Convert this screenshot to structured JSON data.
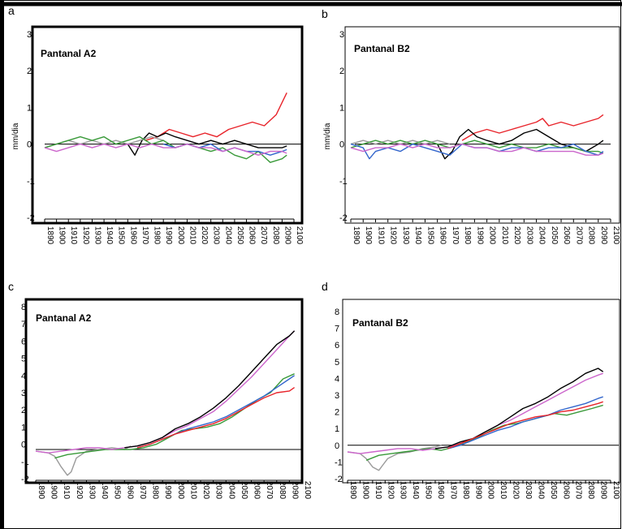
{
  "chart_data": [
    {
      "panel": "a",
      "title": "Pantanal A2",
      "type": "line",
      "ylabel": "mm/dia",
      "ylim": [
        -2,
        3
      ],
      "xlim": [
        1890,
        2100
      ],
      "yticks": [
        "3",
        "2",
        "1",
        "0",
        "-1",
        "-2"
      ],
      "xticks": [
        "1890",
        "1900",
        "1910",
        "1920",
        "1930",
        "1940",
        "1950",
        "1960",
        "1970",
        "1980",
        "1990",
        "2000",
        "2010",
        "2020",
        "2030",
        "2040",
        "2050",
        "2060",
        "2070",
        "2080",
        "2090",
        "2100"
      ],
      "reference_line": 0,
      "series": [
        {
          "color": "#e8232a",
          "x": [
            1975,
            1985,
            1995,
            2005,
            2015,
            2025,
            2035,
            2045,
            2055,
            2065,
            2075,
            2085,
            2094
          ],
          "y": [
            0.1,
            0.2,
            0.4,
            0.3,
            0.2,
            0.3,
            0.2,
            0.4,
            0.5,
            0.6,
            0.5,
            0.8,
            1.4
          ]
        },
        {
          "color": "#000000",
          "x": [
            1960,
            1966,
            1972,
            1978,
            1985,
            1992,
            2000,
            2010,
            2020,
            2030,
            2040,
            2050,
            2060,
            2070,
            2080,
            2090,
            2094
          ],
          "y": [
            0.0,
            -0.3,
            0.1,
            0.3,
            0.2,
            0.3,
            0.2,
            0.1,
            0.0,
            0.1,
            0.0,
            0.1,
            0.0,
            -0.1,
            -0.1,
            -0.1,
            -0.05
          ]
        },
        {
          "color": "#9a9a9a",
          "x": [
            1890,
            1900,
            1910,
            1920,
            1930,
            1940,
            1950,
            1960,
            1970,
            1980,
            1990
          ],
          "y": [
            -0.1,
            0.0,
            0.1,
            0.0,
            0.1,
            0.0,
            0.1,
            0.0,
            0.1,
            0.2,
            0.1
          ]
        },
        {
          "color": "#3a9a3a",
          "x": [
            1890,
            1900,
            1910,
            1920,
            1930,
            1940,
            1950,
            1960,
            1970,
            1980,
            1990,
            2000,
            2010,
            2020,
            2030,
            2040,
            2050,
            2060,
            2070,
            2080,
            2090,
            2094
          ],
          "y": [
            -0.1,
            0.0,
            0.1,
            0.2,
            0.1,
            0.2,
            0.0,
            0.1,
            0.2,
            0.0,
            0.1,
            -0.1,
            0.0,
            -0.1,
            -0.2,
            -0.1,
            -0.3,
            -0.4,
            -0.2,
            -0.5,
            -0.4,
            -0.3
          ]
        },
        {
          "color": "#3366cc",
          "x": [
            1990,
            2000,
            2010,
            2020,
            2030,
            2040,
            2050,
            2060,
            2070,
            2080,
            2090,
            2094
          ],
          "y": [
            0.0,
            -0.1,
            0.0,
            -0.1,
            0.0,
            -0.2,
            -0.1,
            -0.2,
            -0.2,
            -0.3,
            -0.2,
            -0.15
          ]
        },
        {
          "color": "#cc66cc",
          "x": [
            1890,
            1900,
            1910,
            1920,
            1930,
            1940,
            1950,
            1960,
            1970,
            1980,
            1990,
            2000,
            2010,
            2020,
            2030,
            2040,
            2050,
            2060,
            2070,
            2080,
            2090,
            2094
          ],
          "y": [
            -0.1,
            -0.2,
            -0.1,
            0.0,
            -0.1,
            0.0,
            -0.1,
            0.0,
            -0.1,
            0.0,
            -0.1,
            -0.1,
            0.0,
            -0.1,
            -0.1,
            -0.2,
            -0.1,
            -0.2,
            -0.3,
            -0.2,
            -0.2,
            -0.25
          ]
        }
      ]
    },
    {
      "panel": "b",
      "title": "Pantanal B2",
      "type": "line",
      "ylabel": "mm/dia",
      "ylim": [
        -2,
        3
      ],
      "xlim": [
        1890,
        2100
      ],
      "yticks": [
        "3",
        "2",
        "1",
        "0",
        "-1",
        "-2"
      ],
      "xticks": [
        "1890",
        "1900",
        "1910",
        "1920",
        "1930",
        "1940",
        "1950",
        "1960",
        "1970",
        "1980",
        "1990",
        "2000",
        "2010",
        "2020",
        "2030",
        "2040",
        "2050",
        "2060",
        "2070",
        "2080",
        "2090",
        "2100"
      ],
      "reference_line": 0,
      "series": [
        {
          "color": "#e8232a",
          "x": [
            1980,
            1990,
            2000,
            2010,
            2020,
            2030,
            2040,
            2045,
            2050,
            2060,
            2070,
            2080,
            2090,
            2094
          ],
          "y": [
            0.1,
            0.3,
            0.4,
            0.3,
            0.4,
            0.5,
            0.6,
            0.7,
            0.5,
            0.6,
            0.5,
            0.6,
            0.7,
            0.8
          ]
        },
        {
          "color": "#000000",
          "x": [
            1960,
            1966,
            1972,
            1978,
            1985,
            1992,
            2000,
            2010,
            2020,
            2030,
            2040,
            2050,
            2060,
            2070,
            2080,
            2090,
            2094
          ],
          "y": [
            0.0,
            -0.4,
            -0.2,
            0.2,
            0.4,
            0.2,
            0.1,
            0.0,
            0.1,
            0.3,
            0.4,
            0.2,
            0.0,
            -0.1,
            -0.2,
            0.0,
            0.1
          ]
        },
        {
          "color": "#9a9a9a",
          "x": [
            1890,
            1900,
            1910,
            1920,
            1930,
            1940,
            1950,
            1960,
            1970
          ],
          "y": [
            0.0,
            0.1,
            0.0,
            0.1,
            0.0,
            0.1,
            0.0,
            0.1,
            0.0
          ]
        },
        {
          "color": "#3a9a3a",
          "x": [
            1890,
            1900,
            1910,
            1920,
            1930,
            1940,
            1950,
            1960,
            1970,
            1980,
            1990,
            2000,
            2010,
            2020,
            2030,
            2040,
            2050,
            2060,
            2070,
            2080,
            2090,
            2094
          ],
          "y": [
            -0.1,
            0.0,
            0.1,
            0.0,
            0.1,
            0.0,
            0.1,
            0.0,
            -0.1,
            0.0,
            0.1,
            0.0,
            -0.1,
            0.0,
            -0.1,
            -0.1,
            0.0,
            -0.1,
            -0.1,
            -0.2,
            -0.2,
            -0.25
          ]
        },
        {
          "color": "#3366cc",
          "x": [
            1890,
            1900,
            1905,
            1910,
            1920,
            1930,
            1940,
            1950,
            1960,
            1970,
            1980,
            1990,
            2000,
            2010,
            2020,
            2030,
            2040,
            2050,
            2060,
            2070,
            2080,
            2090,
            2094
          ],
          "y": [
            0.0,
            -0.1,
            -0.4,
            -0.2,
            -0.1,
            -0.2,
            0.0,
            -0.1,
            -0.2,
            -0.3,
            0.0,
            -0.1,
            -0.1,
            -0.2,
            -0.1,
            -0.1,
            -0.2,
            -0.1,
            -0.1,
            0.0,
            -0.2,
            -0.3,
            -0.2
          ]
        },
        {
          "color": "#cc66cc",
          "x": [
            1890,
            1900,
            1910,
            1920,
            1930,
            1940,
            1950,
            1960,
            1970,
            1980,
            1990,
            2000,
            2010,
            2020,
            2030,
            2040,
            2050,
            2060,
            2070,
            2080,
            2090,
            2094
          ],
          "y": [
            -0.1,
            -0.2,
            -0.1,
            -0.1,
            0.0,
            -0.1,
            0.0,
            -0.1,
            -0.1,
            0.0,
            -0.1,
            -0.1,
            -0.2,
            -0.2,
            -0.1,
            -0.2,
            -0.2,
            -0.2,
            -0.2,
            -0.3,
            -0.3,
            -0.25
          ]
        }
      ]
    },
    {
      "panel": "c",
      "title": "Pantanal A2",
      "type": "line",
      "ylim": [
        -2,
        8
      ],
      "xlim": [
        1890,
        2100
      ],
      "yticks": [
        "8",
        "7",
        "6",
        "5",
        "4",
        "3",
        "2",
        "1",
        "0",
        "-1",
        "-2"
      ],
      "xticks": [
        "1890",
        "1900",
        "1910",
        "1920",
        "1930",
        "1940",
        "1950",
        "1960",
        "1970",
        "1980",
        "1990",
        "2000",
        "2010",
        "2020",
        "2030",
        "2040",
        "2050",
        "2060",
        "2070",
        "2080",
        "2090",
        "2100"
      ],
      "reference_line": -0.3,
      "series": [
        {
          "color": "#9a9a9a",
          "x": [
            1890,
            1900,
            1905,
            1910,
            1915,
            1918,
            1922,
            1930,
            1940,
            1950,
            1960,
            1965
          ],
          "y": [
            -0.4,
            -0.5,
            -0.7,
            -1.3,
            -1.8,
            -1.6,
            -0.8,
            -0.4,
            -0.3,
            -0.2,
            -0.3,
            -0.1
          ]
        },
        {
          "color": "#3a9a3a",
          "x": [
            1905,
            1915,
            1925,
            1935,
            1945,
            1955,
            1965,
            1975,
            1985,
            1995,
            2005,
            2015,
            2025,
            2035,
            2045,
            2055,
            2065,
            2075,
            2085,
            2094
          ],
          "y": [
            -0.8,
            -0.6,
            -0.5,
            -0.4,
            -0.3,
            -0.3,
            -0.3,
            -0.2,
            0.0,
            0.4,
            0.8,
            0.9,
            1.0,
            1.2,
            1.6,
            2.1,
            2.6,
            3.0,
            3.8,
            4.1
          ]
        },
        {
          "color": "#cc66cc",
          "x": [
            1890,
            1900,
            1910,
            1920,
            1930,
            1940,
            1950,
            1960,
            1970,
            1980,
            1990,
            2000,
            2010,
            2020,
            2030,
            2040,
            2050,
            2060,
            2070,
            2080,
            2090,
            2094
          ],
          "y": [
            -0.4,
            -0.5,
            -0.4,
            -0.3,
            -0.2,
            -0.2,
            -0.3,
            -0.2,
            -0.1,
            0.1,
            0.4,
            0.8,
            1.1,
            1.5,
            1.9,
            2.5,
            3.2,
            3.9,
            4.7,
            5.5,
            6.3,
            6.6
          ]
        },
        {
          "color": "#000000",
          "x": [
            1960,
            1970,
            1980,
            1990,
            2000,
            2010,
            2020,
            2030,
            2040,
            2050,
            2060,
            2070,
            2080,
            2090,
            2094
          ],
          "y": [
            -0.2,
            -0.1,
            0.1,
            0.4,
            0.9,
            1.2,
            1.6,
            2.1,
            2.7,
            3.4,
            4.2,
            5.0,
            5.8,
            6.3,
            6.6
          ]
        },
        {
          "color": "#3366cc",
          "x": [
            1970,
            1980,
            1990,
            2000,
            2010,
            2020,
            2030,
            2040,
            2050,
            2060,
            2070,
            2080,
            2090,
            2094
          ],
          "y": [
            -0.2,
            0.0,
            0.3,
            0.6,
            0.9,
            1.1,
            1.3,
            1.6,
            2.0,
            2.4,
            2.8,
            3.3,
            3.8,
            4.0
          ]
        },
        {
          "color": "#e8232a",
          "x": [
            1970,
            1980,
            1990,
            2000,
            2010,
            2020,
            2030,
            2040,
            2050,
            2060,
            2070,
            2080,
            2090,
            2094
          ],
          "y": [
            -0.2,
            0.0,
            0.3,
            0.6,
            0.8,
            1.0,
            1.2,
            1.5,
            1.9,
            2.3,
            2.7,
            3.0,
            3.1,
            3.3
          ]
        }
      ]
    },
    {
      "panel": "d",
      "title": "Pantanal B2",
      "type": "line",
      "ylim": [
        -2,
        8
      ],
      "xlim": [
        1890,
        2100
      ],
      "yticks": [
        "8",
        "7",
        "6",
        "5",
        "4",
        "3",
        "2",
        "1",
        "0",
        "-1",
        "-2"
      ],
      "xticks": [
        "1890",
        "1900",
        "1910",
        "1920",
        "1930",
        "1940",
        "1950",
        "1960",
        "1970",
        "1980",
        "1990",
        "2000",
        "2010",
        "2020",
        "2030",
        "2040",
        "2050",
        "2060",
        "2070",
        "2080",
        "2090",
        "2100"
      ],
      "reference_line": 0,
      "series": [
        {
          "color": "#9a9a9a",
          "x": [
            1890,
            1900,
            1905,
            1910,
            1915,
            1918,
            1922,
            1930,
            1940,
            1950,
            1960,
            1965
          ],
          "y": [
            -0.4,
            -0.5,
            -0.8,
            -1.3,
            -1.5,
            -1.2,
            -0.8,
            -0.5,
            -0.4,
            -0.2,
            -0.1,
            0.0
          ]
        },
        {
          "color": "#3a9a3a",
          "x": [
            1905,
            1915,
            1925,
            1935,
            1945,
            1955,
            1965,
            1975,
            1985,
            1995,
            2005,
            2015,
            2025,
            2035,
            2045,
            2055,
            2065,
            2075,
            2085,
            2094
          ],
          "y": [
            -0.9,
            -0.6,
            -0.5,
            -0.4,
            -0.3,
            -0.2,
            -0.3,
            -0.1,
            0.2,
            0.5,
            0.9,
            1.2,
            1.3,
            1.5,
            1.7,
            1.9,
            1.8,
            2.0,
            2.2,
            2.4
          ]
        },
        {
          "color": "#cc66cc",
          "x": [
            1890,
            1900,
            1910,
            1920,
            1930,
            1940,
            1950,
            1960,
            1970,
            1980,
            1990,
            2000,
            2010,
            2020,
            2030,
            2040,
            2050,
            2060,
            2070,
            2080,
            2090,
            2094
          ],
          "y": [
            -0.4,
            -0.5,
            -0.4,
            -0.3,
            -0.2,
            -0.2,
            -0.3,
            -0.2,
            -0.1,
            0.1,
            0.4,
            0.8,
            1.2,
            1.5,
            1.9,
            2.3,
            2.7,
            3.1,
            3.5,
            3.9,
            4.2,
            4.3
          ]
        },
        {
          "color": "#000000",
          "x": [
            1960,
            1970,
            1980,
            1990,
            2000,
            2010,
            2020,
            2030,
            2040,
            2050,
            2060,
            2070,
            2080,
            2090,
            2094
          ],
          "y": [
            -0.2,
            -0.1,
            0.2,
            0.4,
            0.8,
            1.2,
            1.7,
            2.2,
            2.5,
            2.9,
            3.4,
            3.8,
            4.3,
            4.6,
            4.4
          ]
        },
        {
          "color": "#3366cc",
          "x": [
            1970,
            1980,
            1990,
            2000,
            2010,
            2020,
            2030,
            2040,
            2050,
            2060,
            2070,
            2080,
            2090,
            2094
          ],
          "y": [
            -0.2,
            0.0,
            0.3,
            0.6,
            0.9,
            1.1,
            1.4,
            1.6,
            1.8,
            2.1,
            2.3,
            2.5,
            2.8,
            2.9
          ]
        },
        {
          "color": "#e8232a",
          "x": [
            1970,
            1980,
            1990,
            2000,
            2010,
            2020,
            2030,
            2040,
            2050,
            2060,
            2070,
            2080,
            2090,
            2094
          ],
          "y": [
            -0.2,
            0.1,
            0.4,
            0.7,
            1.0,
            1.3,
            1.5,
            1.7,
            1.8,
            2.0,
            2.1,
            2.3,
            2.5,
            2.6
          ]
        }
      ]
    }
  ]
}
